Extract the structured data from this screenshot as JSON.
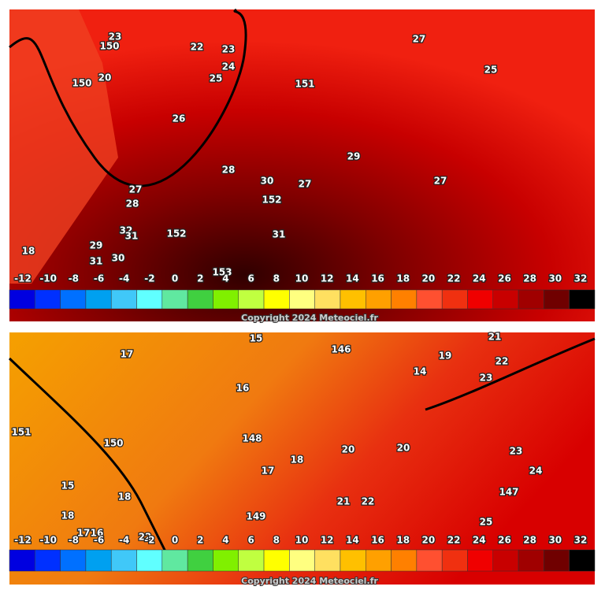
{
  "panels": [
    {
      "contour_labels": [
        "23",
        "150",
        "22",
        "23",
        "24",
        "25",
        "151",
        "27",
        "25",
        "150",
        "20",
        "26",
        "28",
        "29",
        "30",
        "27",
        "152",
        "27",
        "27",
        "28",
        "32",
        "31",
        "152",
        "31",
        "29",
        "18",
        "31",
        "30",
        "153"
      ],
      "scale_labels": [
        -12,
        -10,
        -8,
        -6,
        -4,
        -2,
        0,
        2,
        4,
        6,
        8,
        10,
        12,
        14,
        16,
        18,
        20,
        22,
        24,
        26,
        28,
        30,
        32
      ],
      "copyright": "Copyright 2024 Meteociel.fr"
    },
    {
      "contour_labels": [
        "15",
        "146",
        "17",
        "21",
        "22",
        "19",
        "14",
        "23",
        "16",
        "151",
        "150",
        "148",
        "20",
        "20",
        "23",
        "18",
        "17",
        "24",
        "15",
        "18",
        "147",
        "21",
        "22",
        "18",
        "149",
        "25",
        "17",
        "16",
        "22"
      ],
      "scale_labels": [
        -12,
        -10,
        -8,
        -6,
        -4,
        -2,
        0,
        2,
        4,
        6,
        8,
        10,
        12,
        14,
        16,
        18,
        20,
        22,
        24,
        26,
        28,
        30,
        32
      ],
      "copyright": "Copyright 2024 Meteociel.fr"
    }
  ]
}
